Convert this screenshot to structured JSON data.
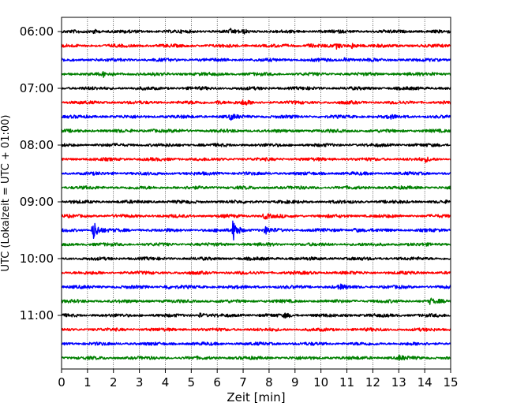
{
  "chart_data": {
    "type": "line",
    "title": "",
    "xlabel": "Zeit  [min]",
    "ylabel": "UTC (Lokalzeit = UTC + 01:00)",
    "xlim": [
      0,
      15
    ],
    "x_ticks": [
      "0",
      "1",
      "2",
      "3",
      "4",
      "5",
      "6",
      "7",
      "8",
      "9",
      "10",
      "11",
      "12",
      "13",
      "14",
      "15"
    ],
    "y_tick_labels": [
      "06:00",
      "07:00",
      "08:00",
      "09:00",
      "10:00",
      "11:00"
    ],
    "y_tick_trace_index": [
      0,
      4,
      8,
      12,
      16,
      20
    ],
    "trace_minutes": 15,
    "trace_start": "06:00",
    "trace_count": 24,
    "grid": "vertical dotted at each minute",
    "colors": [
      "#000000",
      "#ff0000",
      "#0000ff",
      "#008000"
    ],
    "events": [
      {
        "trace": 0,
        "x": 1.2,
        "amp": 0.45
      },
      {
        "trace": 0,
        "x": 6.5,
        "amp": 0.3
      },
      {
        "trace": 0,
        "x": 7.0,
        "amp": 0.3
      },
      {
        "trace": 1,
        "x": 9.5,
        "amp": 0.35
      },
      {
        "trace": 1,
        "x": 10.6,
        "amp": 0.35
      },
      {
        "trace": 1,
        "x": 11.2,
        "amp": 0.5
      },
      {
        "trace": 2,
        "x": 10.9,
        "amp": 0.35
      },
      {
        "trace": 3,
        "x": 1.6,
        "amp": 0.35
      },
      {
        "trace": 3,
        "x": 14.3,
        "amp": 0.3
      },
      {
        "trace": 5,
        "x": 6.0,
        "amp": 0.4
      },
      {
        "trace": 5,
        "x": 7.0,
        "amp": 0.45
      },
      {
        "trace": 6,
        "x": 6.5,
        "amp": 0.45
      },
      {
        "trace": 6,
        "x": 12.6,
        "amp": 0.35
      },
      {
        "trace": 7,
        "x": 3.4,
        "amp": 0.35
      },
      {
        "trace": 9,
        "x": 14.0,
        "amp": 0.35
      },
      {
        "trace": 13,
        "x": 7.8,
        "amp": 0.6
      },
      {
        "trace": 14,
        "x": 1.2,
        "amp": 2.2
      },
      {
        "trace": 14,
        "x": 6.6,
        "amp": 2.2
      },
      {
        "trace": 14,
        "x": 7.85,
        "amp": 0.6
      },
      {
        "trace": 14,
        "x": 11.3,
        "amp": 0.4
      },
      {
        "trace": 18,
        "x": 4.0,
        "amp": 0.4
      },
      {
        "trace": 18,
        "x": 10.7,
        "amp": 0.4
      },
      {
        "trace": 19,
        "x": 14.2,
        "amp": 0.45
      },
      {
        "trace": 20,
        "x": 5.3,
        "amp": 0.4
      },
      {
        "trace": 20,
        "x": 8.6,
        "amp": 0.4
      },
      {
        "trace": 23,
        "x": 13.0,
        "amp": 0.4
      }
    ]
  }
}
